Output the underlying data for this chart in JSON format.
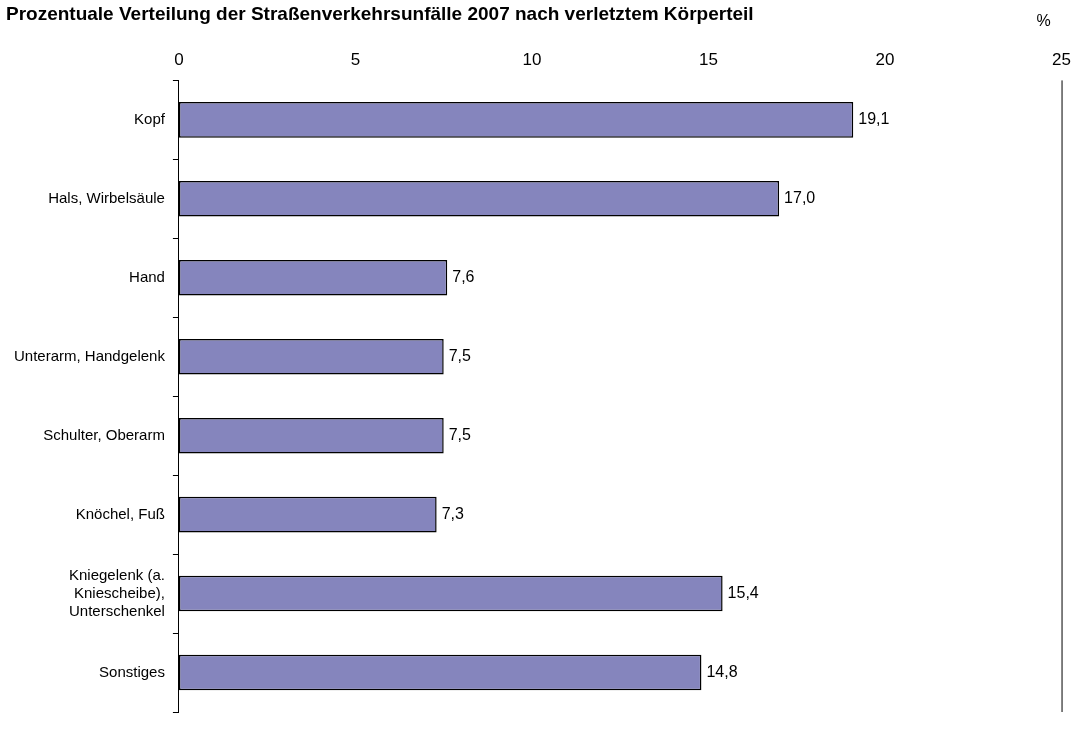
{
  "chart_data": {
    "type": "bar",
    "orientation": "horizontal",
    "title": "Prozentuale Verteilung der Straßenverkehrsunfälle 2007 nach verletztem Körperteil",
    "xlabel": "%",
    "categories": [
      "Kopf",
      "Hals, Wirbelsäule",
      "Hand",
      "Unterarm, Handgelenk",
      "Schulter, Oberarm",
      "Knöchel, Fuß",
      "Kniegelenk (a. Kniescheibe), Unterschenkel",
      "Sonstiges"
    ],
    "values": [
      19.1,
      17.0,
      7.6,
      7.5,
      7.5,
      7.3,
      15.4,
      14.8
    ],
    "value_labels": [
      "19,1",
      "17,0",
      "7,6",
      "7,5",
      "7,5",
      "7,3",
      "15,4",
      "14,8"
    ],
    "color": "#8585bd",
    "xlim": [
      0,
      25
    ],
    "xticks": [
      0,
      5,
      10,
      15,
      20,
      25
    ],
    "grid": false,
    "legend": false
  }
}
